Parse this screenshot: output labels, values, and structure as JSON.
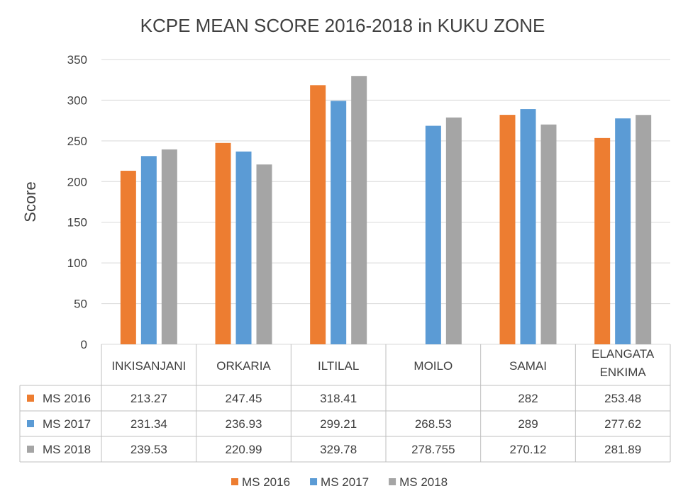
{
  "chart_data": {
    "type": "bar",
    "title": "KCPE MEAN SCORE 2016-2018 in KUKU ZONE",
    "ylabel": "Score",
    "xlabel": "",
    "ylim": [
      0,
      350
    ],
    "yticks": [
      0,
      50,
      100,
      150,
      200,
      250,
      300,
      350
    ],
    "grid": true,
    "legend": "bottom",
    "data_table": true,
    "categories": [
      "INKISANJANI",
      "ORKARIA",
      "ILTILAL",
      "MOILO",
      "SAMAI",
      "ELANGATA ENKIMA"
    ],
    "series": [
      {
        "name": "MS 2016",
        "color": "#ED7D31",
        "values": [
          213.27,
          247.45,
          318.41,
          null,
          282,
          253.48
        ],
        "labels": [
          "213.27",
          "247.45",
          "318.41",
          "",
          "282",
          "253.48"
        ]
      },
      {
        "name": "MS 2017",
        "color": "#5B9BD5",
        "values": [
          231.34,
          236.93,
          299.21,
          268.53,
          289,
          277.62
        ],
        "labels": [
          "231.34",
          "236.93",
          "299.21",
          "268.53",
          "289",
          "277.62"
        ]
      },
      {
        "name": "MS 2018",
        "color": "#A5A5A5",
        "values": [
          239.53,
          220.99,
          329.78,
          278.755,
          270.12,
          281.89
        ],
        "labels": [
          "239.53",
          "220.99",
          "329.78",
          "278.755",
          "270.12",
          "281.89"
        ]
      }
    ]
  }
}
